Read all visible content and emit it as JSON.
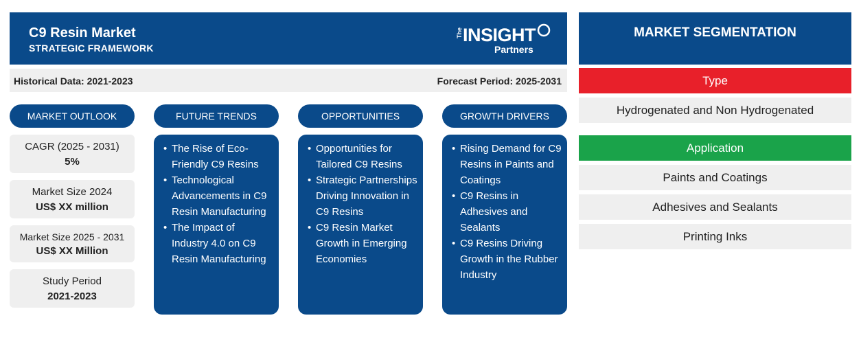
{
  "header": {
    "title": "C9 Resin Market",
    "subtitle": "STRATEGIC FRAMEWORK",
    "logo": {
      "the": "The",
      "insight": "INSIGHT",
      "partners": "Partners"
    }
  },
  "periods": {
    "historical": "Historical Data: 2021-2023",
    "forecast": "Forecast Period: 2025-2031"
  },
  "columns": [
    {
      "title": "MARKET OUTLOOK"
    },
    {
      "title": "FUTURE TRENDS",
      "items": [
        "The Rise of Eco-Friendly C9 Resins",
        "Technological Advancements in C9 Resin Manufacturing",
        "The Impact of Industry 4.0 on C9 Resin Manufacturing"
      ]
    },
    {
      "title": "OPPORTUNITIES",
      "items": [
        "Opportunities for Tailored C9 Resins",
        "Strategic Partnerships Driving Innovation in C9 Resins",
        "C9 Resin Market Growth in Emerging Economies"
      ]
    },
    {
      "title": "GROWTH DRIVERS",
      "items": [
        "Rising Demand for C9 Resins in Paints and Coatings",
        "C9 Resins in Adhesives and Sealants",
        "C9 Resins Driving Growth in the Rubber Industry"
      ]
    }
  ],
  "outlook": [
    {
      "label": "CAGR (2025 - 2031)",
      "value": "5%"
    },
    {
      "label": "Market Size 2024",
      "value": "US$ XX million"
    },
    {
      "label": "Market Size 2025 - 2031",
      "value": "US$ XX Million"
    },
    {
      "label": "Study Period",
      "value": "2021-2023"
    }
  ],
  "segmentation": {
    "title": "MARKET SEGMENTATION",
    "type": {
      "label": "Type",
      "color": "#e8202a",
      "items": [
        "Hydrogenated and Non Hydrogenated"
      ]
    },
    "application": {
      "label": "Application",
      "color": "#1aa34a",
      "items": [
        "Paints and Coatings",
        "Adhesives and Sealants",
        "Printing Inks"
      ]
    }
  },
  "colors": {
    "navy": "#0a4a8a",
    "grey": "#efefef"
  }
}
